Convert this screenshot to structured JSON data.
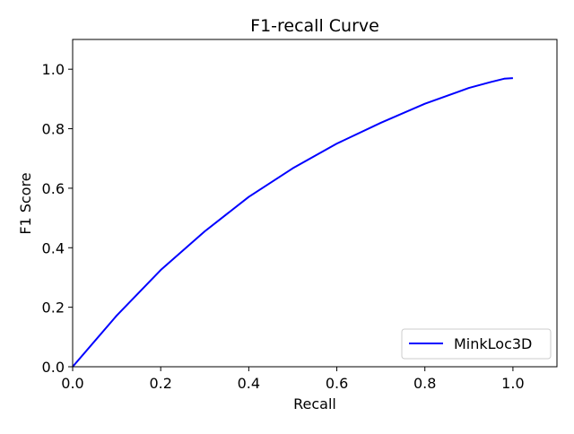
{
  "chart_data": {
    "type": "line",
    "title": "F1-recall Curve",
    "xlabel": "Recall",
    "ylabel": "F1 Score",
    "xlim": [
      0.0,
      1.1
    ],
    "ylim": [
      0.0,
      1.1
    ],
    "xticks": [
      0.0,
      0.2,
      0.4,
      0.6,
      0.8,
      1.0
    ],
    "xtick_labels": [
      "0.0",
      "0.2",
      "0.4",
      "0.6",
      "0.8",
      "1.0"
    ],
    "yticks": [
      0.0,
      0.2,
      0.4,
      0.6,
      0.8,
      1.0
    ],
    "ytick_labels": [
      "0.0",
      "0.2",
      "0.4",
      "0.6",
      "0.8",
      "1.0"
    ],
    "grid": false,
    "legend_position": "lower-right",
    "series": [
      {
        "name": "MinkLoc3D",
        "color": "#0000ff",
        "x": [
          0.0,
          0.1,
          0.2,
          0.3,
          0.4,
          0.5,
          0.6,
          0.7,
          0.8,
          0.9,
          0.95,
          0.98,
          1.0
        ],
        "y": [
          0.0,
          0.172,
          0.325,
          0.455,
          0.571,
          0.667,
          0.75,
          0.82,
          0.884,
          0.937,
          0.957,
          0.968,
          0.97
        ]
      }
    ]
  }
}
